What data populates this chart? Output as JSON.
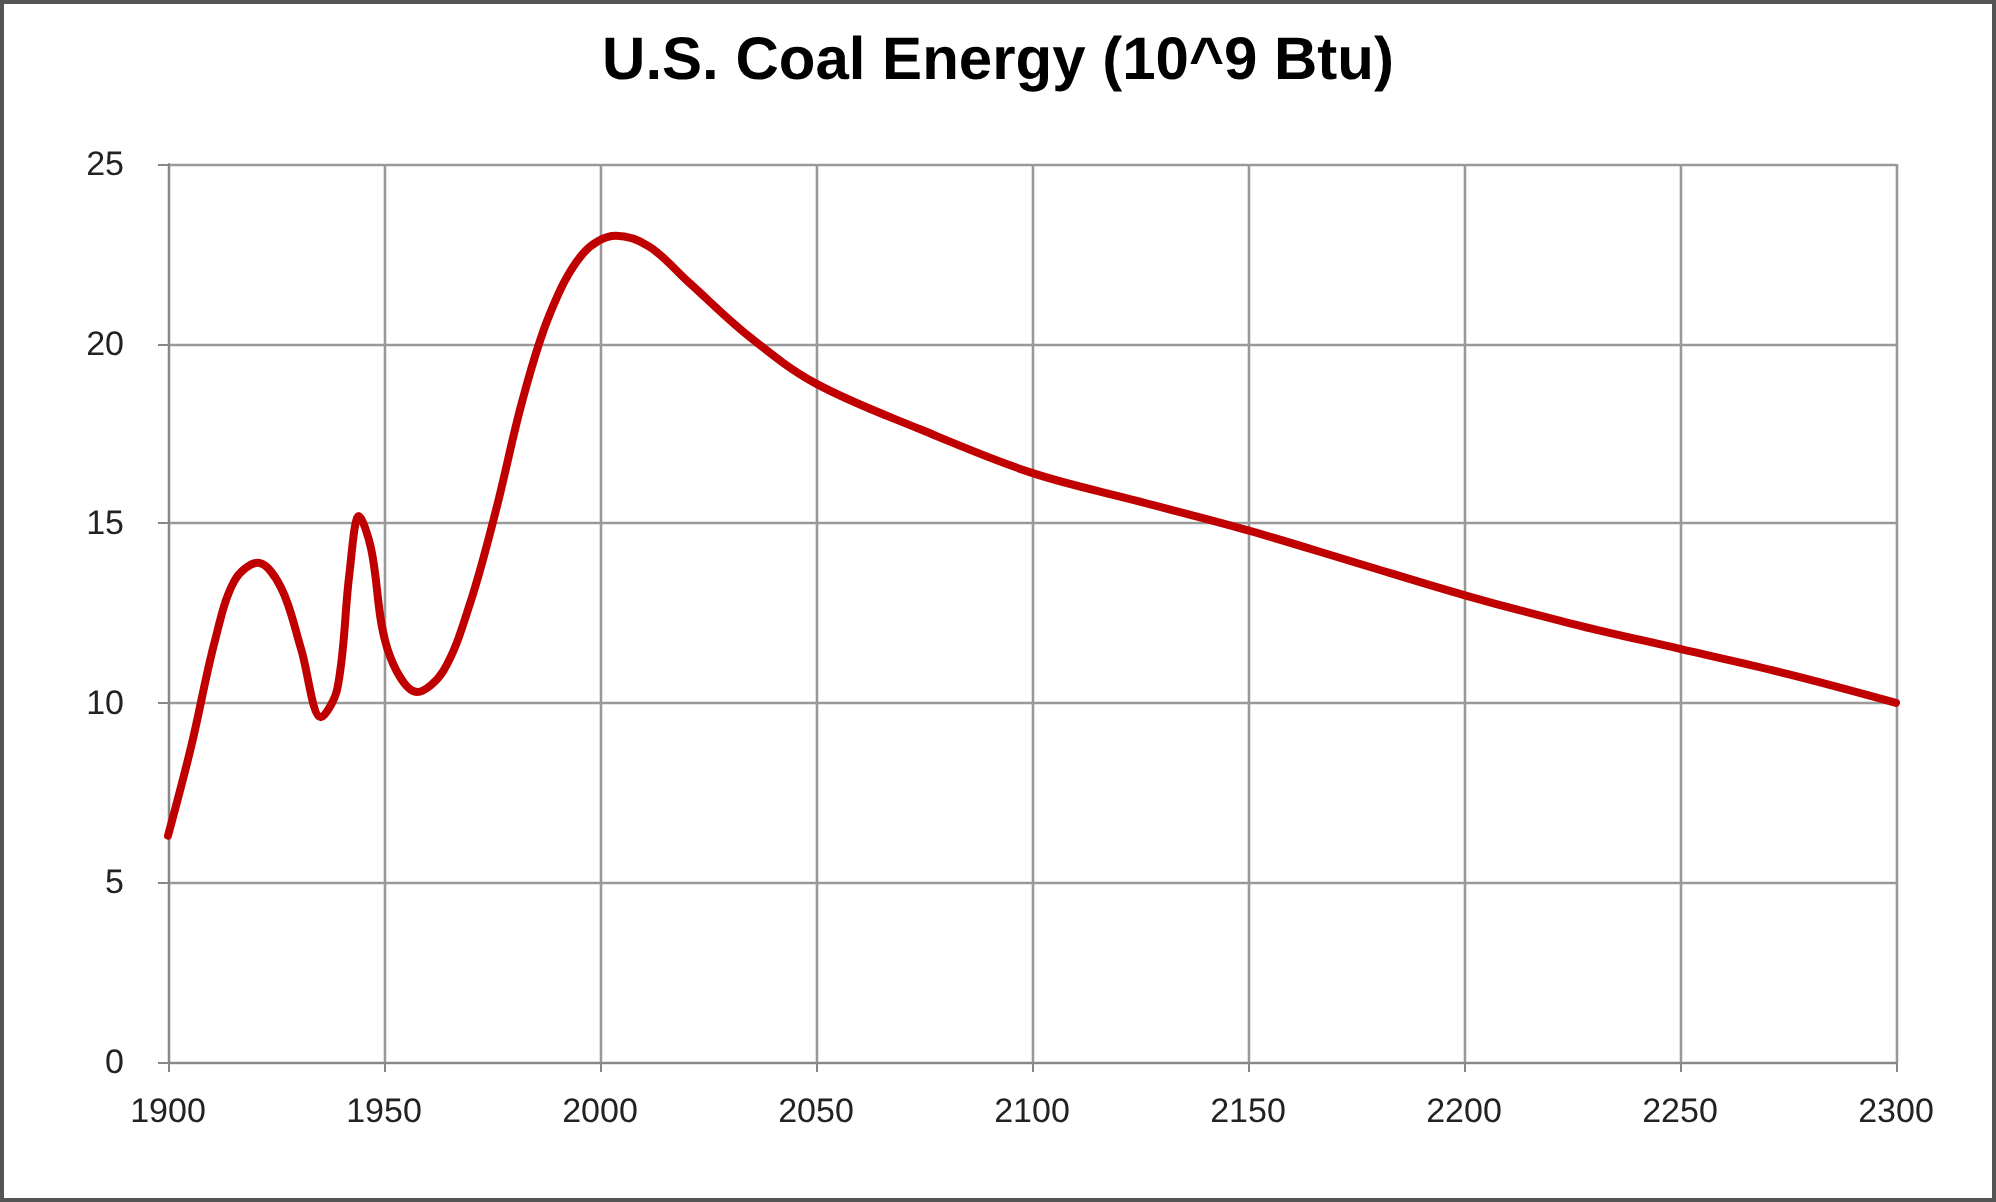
{
  "chart_data": {
    "type": "line",
    "title": "U.S. Coal Energy (10^9 Btu)",
    "x": [
      1900,
      1905.4,
      1910.8,
      1915.4,
      1920.8,
      1926.2,
      1930.8,
      1935.4,
      1939.2,
      1942,
      1944.2,
      1947,
      1950.8,
      1957.7,
      1963.8,
      1970,
      1976,
      1982,
      1988.3,
      1996,
      2003.7,
      2011.4,
      2020.6,
      2034.5,
      2049.8,
      2074.4,
      2100,
      2125,
      2150,
      2175,
      2200,
      2225,
      2250,
      2275,
      2300
    ],
    "series": [
      {
        "color": "#c00000",
        "values": [
          6.3,
          8.8,
          11.7,
          13.4,
          13.9,
          13.2,
          11.5,
          9.6,
          10.4,
          13.6,
          15.2,
          14.3,
          11.5,
          10.3,
          10.9,
          12.8,
          15.4,
          18.4,
          20.8,
          22.5,
          23.0,
          22.7,
          21.7,
          20.2,
          18.9,
          17.6,
          16.4,
          15.6,
          14.8,
          13.9,
          13.0,
          12.2,
          11.5,
          10.8,
          10.0
        ]
      }
    ],
    "xlim": [
      1900,
      2300
    ],
    "xticks": [
      1900,
      1950,
      2000,
      2050,
      2100,
      2150,
      2200,
      2250,
      2300
    ],
    "ylim": [
      0,
      25
    ],
    "yticks": [
      0,
      5,
      10,
      15,
      20,
      25
    ],
    "grid": true,
    "marker": "none",
    "line_style": "solid"
  }
}
